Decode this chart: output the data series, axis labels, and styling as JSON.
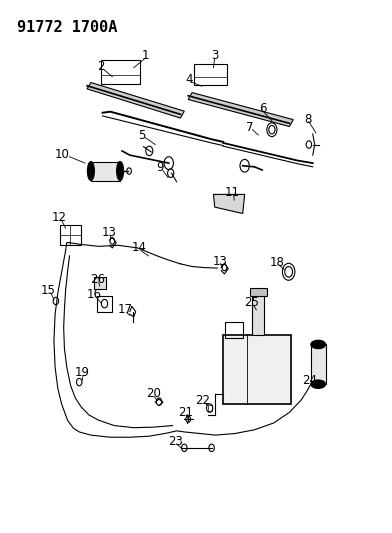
{
  "title": "91772 1700A",
  "bg_color": "#ffffff",
  "line_color": "#000000",
  "title_fontsize": 11,
  "label_fontsize": 8.5,
  "figsize": [
    3.92,
    5.33
  ],
  "dpi": 100
}
